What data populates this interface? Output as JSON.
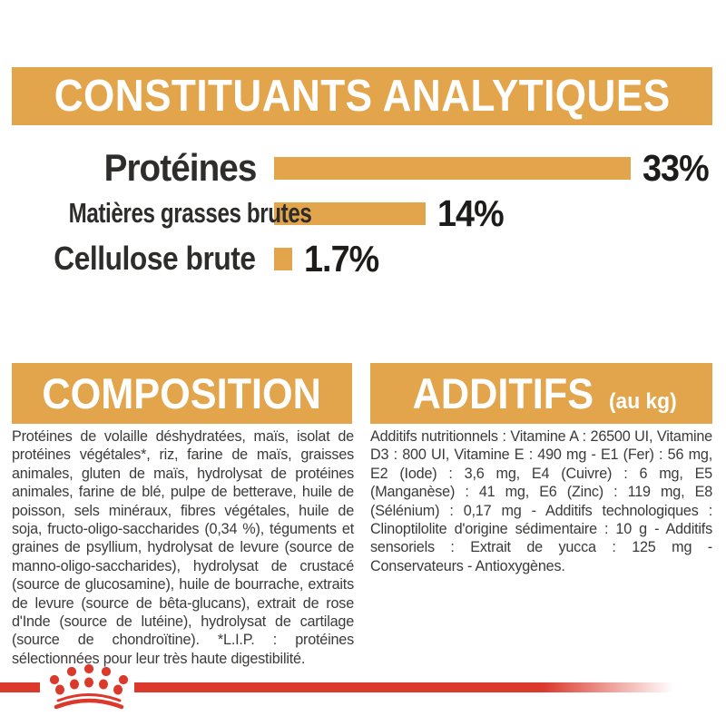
{
  "header": {
    "title": "CONSTITUANTS ANALYTIQUES"
  },
  "chart_data": {
    "type": "bar",
    "orientation": "horizontal",
    "title": "CONSTITUANTS ANALYTIQUES",
    "categories": [
      "Protéines",
      "Matières grasses brutes",
      "Cellulose brute"
    ],
    "values": [
      33,
      14,
      1.7
    ],
    "value_labels": [
      "33%",
      "14%",
      "1.7%"
    ],
    "unit": "%",
    "xlim": [
      0,
      33
    ],
    "grid": "off",
    "bar_color": "#E2A54C",
    "label_color": "#2E2D2C"
  },
  "composition": {
    "title": "COMPOSITION",
    "body": "Protéines de volaille déshydratées, maïs, isolat de protéines végétales*, riz, farine de maïs, graisses animales, gluten de maïs, hydrolysat de protéines animales, farine de blé, pulpe de betterave, huile de poisson, sels minéraux, fibres végétales, huile de soja, fructo-oligo-saccharides (0,34 %), téguments et graines de psyllium, hydrolysat de levure (source de manno-oligo-saccharides), hydrolysat de crustacé (source de glucosamine), huile de bourrache, extraits de levure (source de bêta-glucans), extrait de rose d'Inde (source de lutéine), hydrolysat de cartilage (source de chondroïtine). *L.I.P. : protéines sélectionnées pour leur très haute digestibilité."
  },
  "additives": {
    "title": "ADDITIFS",
    "title_suffix": "(au kg)",
    "body": "Additifs nutritionnels : Vitamine A : 26500 UI, Vitamine D3 : 800 UI, Vitamine E : 490 mg - E1 (Fer) : 56 mg, E2 (Iode) : 3,6 mg, E4 (Cuivre) : 6 mg, E5 (Manganèse) : 41 mg, E6 (Zinc) : 119 mg, E8 (Sélénium) : 0,17 mg - Additifs technologiques : Clinoptilolite d'origine sédimentaire : 10 g - Additifs sensoriels : Extrait de yucca : 125 mg - Conservateurs - Antioxygènes."
  },
  "footer": {
    "brand_logo": "royal-canin-crown"
  },
  "colors": {
    "gold": "#E2A54C",
    "red": "#DB392C",
    "text_dark": "#2E2D2C",
    "body_text": "#3B3A39"
  }
}
